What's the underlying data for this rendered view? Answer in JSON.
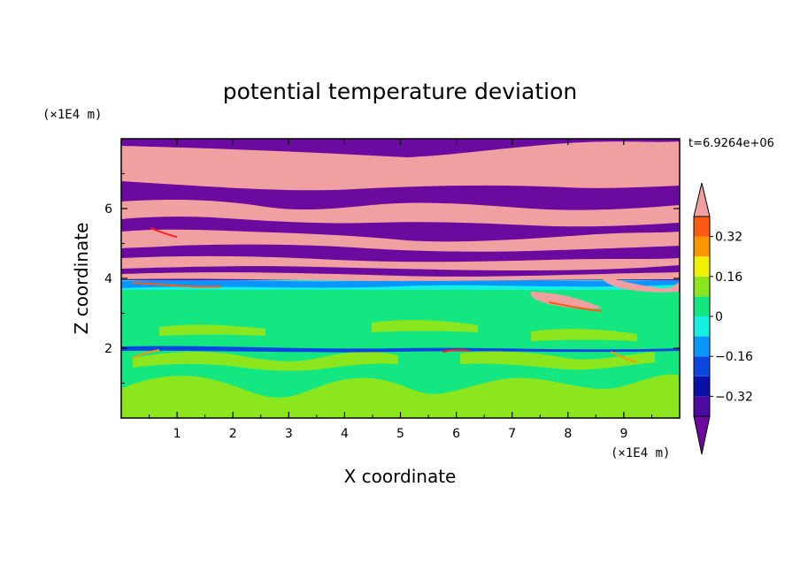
{
  "chart_data": {
    "type": "heatmap",
    "title": "potential temperature deviation",
    "xlabel": "X coordinate",
    "ylabel": "Z coordinate",
    "x_unit": "(×1E4 m)",
    "y_unit": "(×1E4 m)",
    "time_label": "t=6.9264e+06",
    "xlim": [
      0,
      10
    ],
    "ylim": [
      0,
      8
    ],
    "x_ticks": [
      1,
      2,
      3,
      4,
      5,
      6,
      7,
      8,
      9
    ],
    "y_ticks": [
      2,
      4,
      6
    ],
    "x_tick_labels": [
      "1",
      "2",
      "3",
      "4",
      "5",
      "6",
      "7",
      "8",
      "9"
    ],
    "y_tick_labels": [
      "2",
      "4",
      "6"
    ],
    "colorbar": {
      "levels": [
        -0.4,
        -0.32,
        -0.24,
        -0.16,
        -0.08,
        0,
        0.08,
        0.16,
        0.24,
        0.32,
        0.4
      ],
      "colors": [
        "#6a0a9e",
        "#4b0aa0",
        "#0a10a8",
        "#0a46e0",
        "#0a96ff",
        "#14f0e0",
        "#14e682",
        "#8ce61e",
        "#f0f000",
        "#ff9600",
        "#ff5a14",
        "#ff1e1e",
        "#f0a0a0"
      ],
      "tick_values": [
        0.32,
        0.16,
        0,
        -0.16,
        -0.32
      ],
      "tick_labels": [
        "0.32",
        "0.16",
        "0",
        "−0.16",
        "−0.32"
      ]
    },
    "regions": [
      {
        "z_range": [
          7.4,
          8.0
        ],
        "value": "max",
        "description_color": "#f0a0a0"
      },
      {
        "z_range": [
          4.0,
          7.4
        ],
        "value": "alternating",
        "description_color": "#6a0a9e"
      },
      {
        "z_range": [
          3.8,
          4.0
        ],
        "value": -0.1,
        "description_color": "#14f0e0"
      },
      {
        "z_range": [
          0.0,
          3.8
        ],
        "value": 0.02,
        "description_color": "#14e682"
      }
    ]
  }
}
